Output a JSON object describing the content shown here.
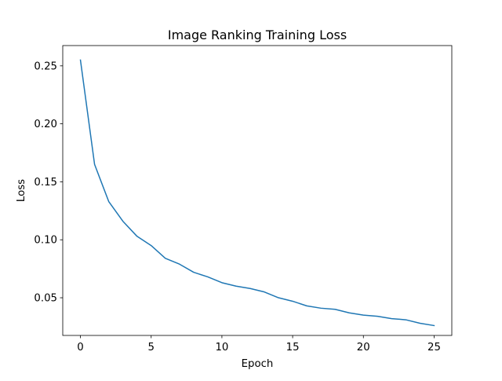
{
  "chart_data": {
    "type": "line",
    "title": "Image Ranking Training Loss",
    "xlabel": "Epoch",
    "ylabel": "Loss",
    "xlim": [
      -1.25,
      26.25
    ],
    "ylim": [
      0.0175,
      0.2675
    ],
    "xticks": [
      0,
      5,
      10,
      15,
      20,
      25
    ],
    "xtick_labels": [
      "0",
      "5",
      "10",
      "15",
      "20",
      "25"
    ],
    "yticks": [
      0.05,
      0.1,
      0.15,
      0.2,
      0.25
    ],
    "ytick_labels": [
      "0.05",
      "0.10",
      "0.15",
      "0.20",
      "0.25"
    ],
    "grid": false,
    "legend": "none",
    "line_color": "#1f77b4",
    "x": [
      0,
      1,
      2,
      3,
      4,
      5,
      6,
      7,
      8,
      9,
      10,
      11,
      12,
      13,
      14,
      15,
      16,
      17,
      18,
      19,
      20,
      21,
      22,
      23,
      24,
      25
    ],
    "series": [
      {
        "values": [
          0.255,
          0.165,
          0.133,
          0.116,
          0.103,
          0.095,
          0.084,
          0.079,
          0.072,
          0.068,
          0.063,
          0.06,
          0.058,
          0.055,
          0.05,
          0.047,
          0.043,
          0.041,
          0.04,
          0.037,
          0.035,
          0.034,
          0.032,
          0.031,
          0.028,
          0.026
        ]
      }
    ]
  }
}
